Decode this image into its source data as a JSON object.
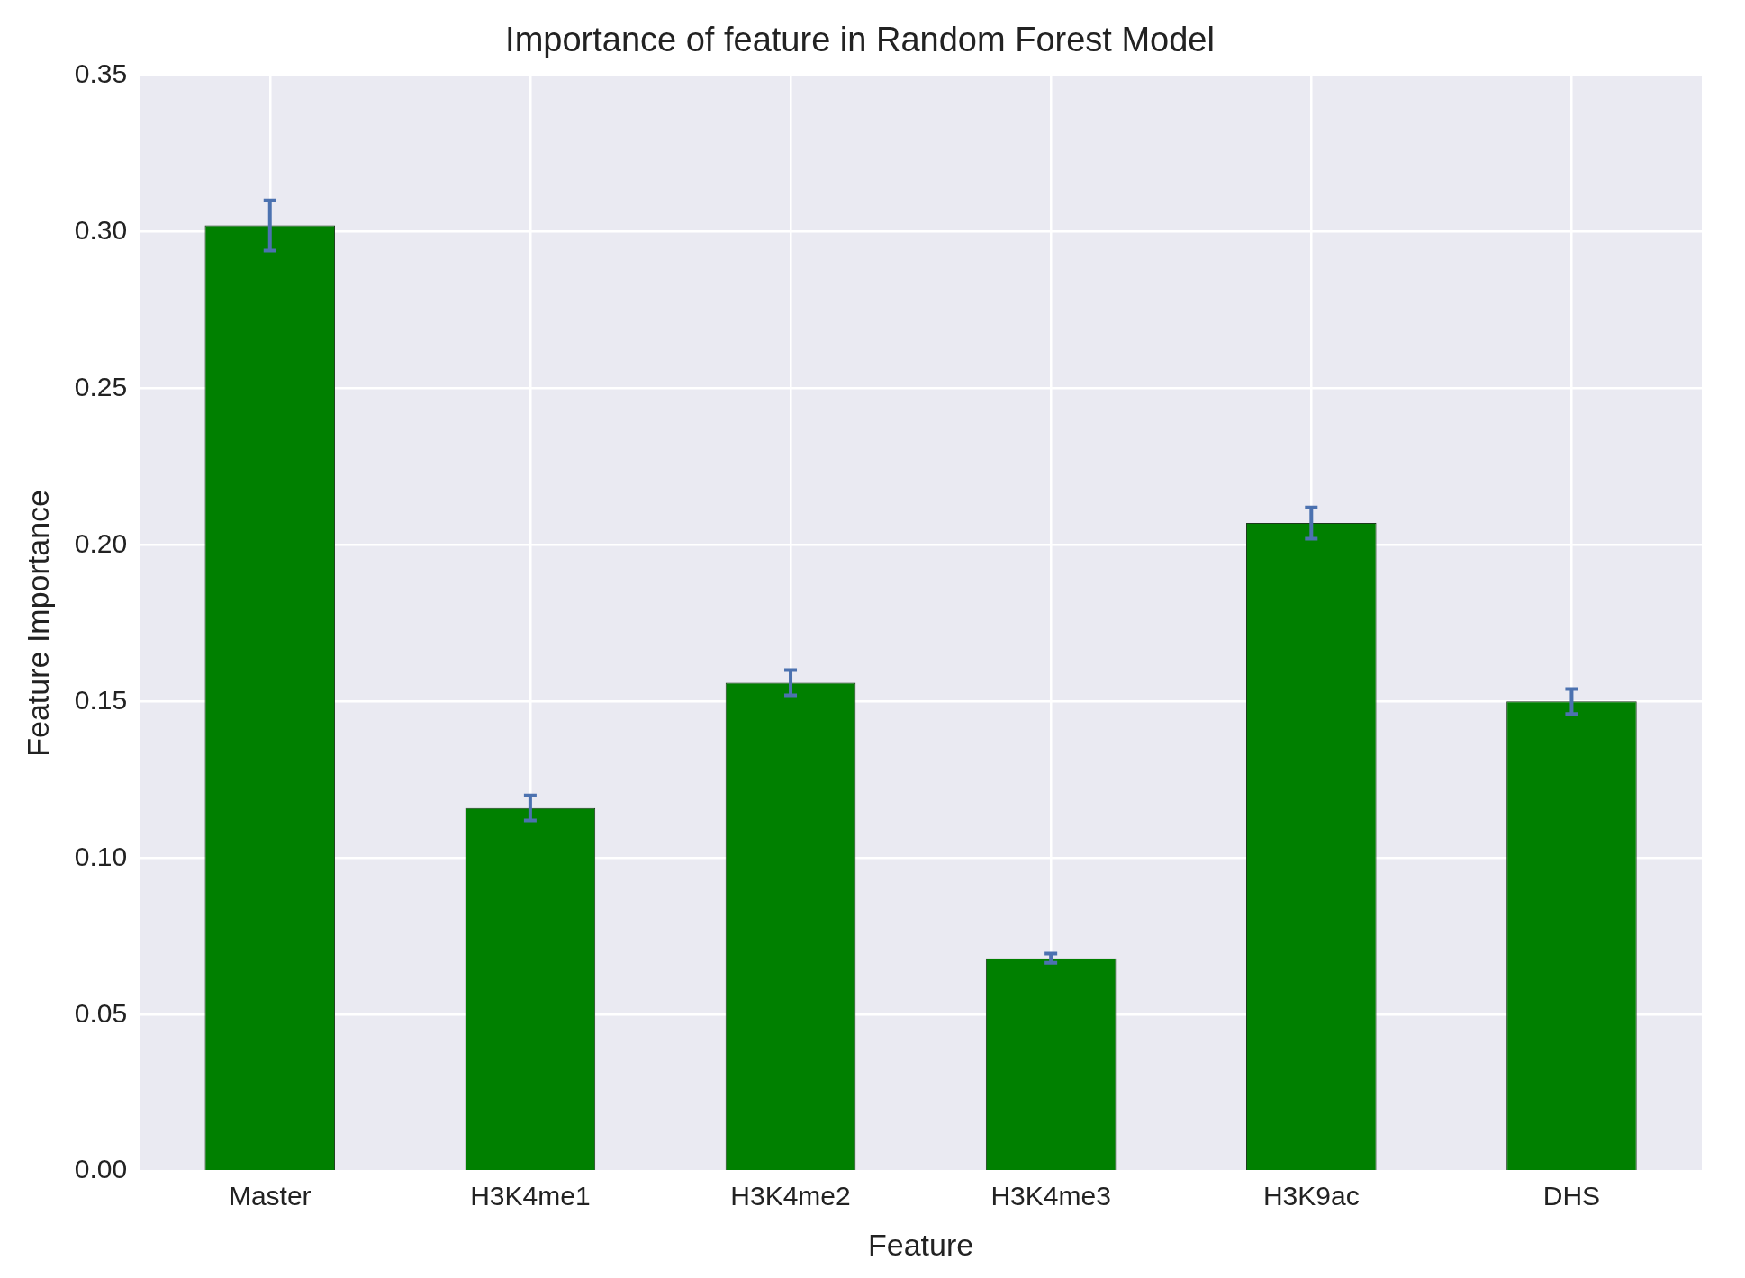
{
  "chart_data": {
    "type": "bar",
    "title": "Importance of feature in Random Forest Model",
    "xlabel": "Feature",
    "ylabel": "Feature Importance",
    "categories": [
      "Master",
      "H3K4me1",
      "H3K4me2",
      "H3K4me3",
      "H3K9ac",
      "DHS"
    ],
    "values": [
      0.302,
      0.116,
      0.156,
      0.068,
      0.207,
      0.15
    ],
    "errors": [
      0.008,
      0.004,
      0.004,
      0.0015,
      0.005,
      0.004
    ],
    "color": "#008000",
    "ylim": [
      0,
      0.35
    ],
    "yticks": [
      {
        "value": 0,
        "label": "0.00"
      },
      {
        "value": 0.05,
        "label": "0.05"
      },
      {
        "value": 0.1,
        "label": "0.10"
      },
      {
        "value": 0.15,
        "label": "0.15"
      },
      {
        "value": 0.2,
        "label": "0.20"
      },
      {
        "value": 0.25,
        "label": "0.25"
      },
      {
        "value": 0.3,
        "label": "0.30"
      },
      {
        "value": 0.35,
        "label": "0.35"
      }
    ],
    "grid": true,
    "legend": false
  }
}
